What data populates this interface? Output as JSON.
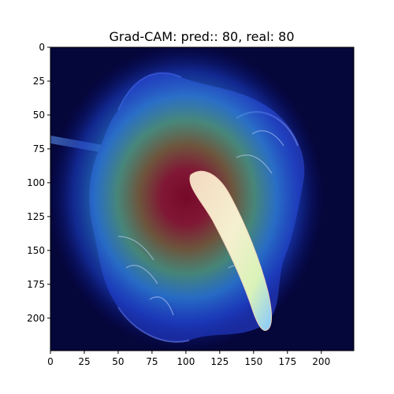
{
  "title": "Grad-CAM: pred:: 80, real: 80",
  "chart_data": {
    "type": "heatmap",
    "title": "Grad-CAM: pred:: 80, real: 80",
    "xlabel": "",
    "ylabel": "",
    "xlim": [
      0,
      224
    ],
    "ylim": [
      224,
      0
    ],
    "x_ticks": [
      0,
      25,
      50,
      75,
      100,
      125,
      150,
      175,
      200
    ],
    "y_ticks": [
      0,
      25,
      50,
      75,
      100,
      125,
      150,
      175,
      200
    ],
    "grid": false,
    "colormap": "jet",
    "hotspot_center": [
      100,
      110
    ],
    "image_subject": "anthurium-flower"
  },
  "colors": {
    "background": "#05063a",
    "heat_core": "#8a0a2a",
    "heat_mid": "#5fa06a",
    "heat_outer": "#1a4bd6",
    "spadix_light": "#f7e9c9",
    "spadix_dark": "#8fd6ff"
  }
}
